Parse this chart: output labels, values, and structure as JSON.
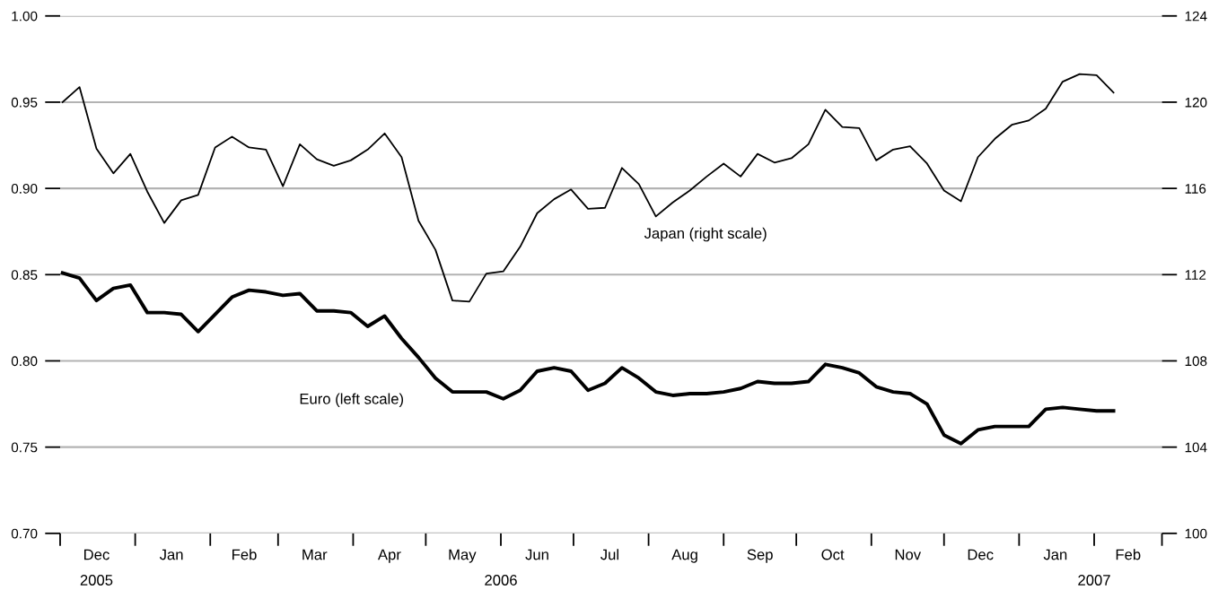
{
  "chart_data": {
    "type": "line",
    "x": [
      "2005-12-02",
      "2005-12-09",
      "2005-12-16",
      "2005-12-23",
      "2005-12-30",
      "2006-01-06",
      "2006-01-13",
      "2006-01-20",
      "2006-01-27",
      "2006-02-03",
      "2006-02-10",
      "2006-02-17",
      "2006-02-24",
      "2006-03-03",
      "2006-03-10",
      "2006-03-17",
      "2006-03-24",
      "2006-03-31",
      "2006-04-07",
      "2006-04-14",
      "2006-04-21",
      "2006-04-28",
      "2006-05-05",
      "2006-05-12",
      "2006-05-19",
      "2006-05-26",
      "2006-06-02",
      "2006-06-09",
      "2006-06-16",
      "2006-06-23",
      "2006-06-30",
      "2006-07-07",
      "2006-07-14",
      "2006-07-21",
      "2006-07-28",
      "2006-08-04",
      "2006-08-11",
      "2006-08-18",
      "2006-08-25",
      "2006-09-01",
      "2006-09-08",
      "2006-09-15",
      "2006-09-22",
      "2006-09-29",
      "2006-10-06",
      "2006-10-13",
      "2006-10-20",
      "2006-10-27",
      "2006-11-03",
      "2006-11-10",
      "2006-11-17",
      "2006-11-24",
      "2006-12-01",
      "2006-12-08",
      "2006-12-15",
      "2006-12-22",
      "2006-12-29",
      "2007-01-05",
      "2007-01-12",
      "2007-01-19",
      "2007-01-26",
      "2007-02-02",
      "2007-02-09"
    ],
    "series": [
      {
        "name": "Euro (left scale)",
        "color": "#000000",
        "axis": "y",
        "values": [
          0.851,
          0.848,
          0.835,
          0.842,
          0.844,
          0.828,
          0.828,
          0.827,
          0.817,
          0.827,
          0.837,
          0.841,
          0.84,
          0.838,
          0.839,
          0.829,
          0.829,
          0.828,
          0.82,
          0.826,
          0.813,
          0.802,
          0.79,
          0.782,
          0.782,
          0.782,
          0.778,
          0.783,
          0.794,
          0.796,
          0.794,
          0.783,
          0.787,
          0.796,
          0.79,
          0.782,
          0.78,
          0.781,
          0.781,
          0.782,
          0.784,
          0.788,
          0.787,
          0.787,
          0.788,
          0.798,
          0.796,
          0.793,
          0.785,
          0.782,
          0.781,
          0.775,
          0.757,
          0.752,
          0.76,
          0.762,
          0.762,
          0.762,
          0.772,
          0.773,
          0.772,
          0.771,
          0.771
        ]
      },
      {
        "name": "Japan (right scale)",
        "color": "#000000",
        "axis": "y2",
        "values": [
          120.0,
          120.7,
          117.85,
          116.7,
          117.6,
          115.85,
          114.4,
          115.45,
          115.7,
          117.9,
          118.4,
          117.9,
          117.8,
          116.1,
          118.05,
          117.35,
          117.05,
          117.3,
          117.8,
          118.55,
          117.45,
          114.5,
          113.15,
          110.8,
          110.75,
          112.05,
          112.15,
          113.3,
          114.85,
          115.5,
          115.95,
          115.05,
          115.1,
          116.95,
          116.2,
          114.7,
          115.35,
          115.9,
          116.55,
          117.15,
          116.55,
          117.6,
          117.2,
          117.4,
          118.05,
          119.65,
          118.85,
          118.8,
          117.3,
          117.8,
          117.95,
          117.15,
          115.9,
          115.4,
          117.45,
          118.3,
          118.95,
          119.15,
          119.7,
          120.95,
          121.3,
          121.25,
          120.45
        ]
      }
    ],
    "xlim": [
      "2005-12-01",
      "2007-03-01"
    ],
    "xticks": [
      {
        "value": "2005-12-01",
        "label": null
      },
      {
        "value": "2006-01-01",
        "label": null
      },
      {
        "value": "2006-02-01",
        "label": null
      },
      {
        "value": "2006-03-01",
        "label": null
      },
      {
        "value": "2006-04-01",
        "label": null
      },
      {
        "value": "2006-05-01",
        "label": null
      },
      {
        "value": "2006-06-01",
        "label": null
      },
      {
        "value": "2006-07-01",
        "label": null
      },
      {
        "value": "2006-08-01",
        "label": null
      },
      {
        "value": "2006-09-01",
        "label": null
      },
      {
        "value": "2006-10-01",
        "label": null
      },
      {
        "value": "2006-11-01",
        "label": null
      },
      {
        "value": "2006-12-01",
        "label": null
      },
      {
        "value": "2007-01-01",
        "label": null
      },
      {
        "value": "2007-02-01",
        "label": null
      },
      {
        "value": "2007-03-01",
        "label": null
      },
      {
        "value": "2005-12-16",
        "label": "Dec"
      },
      {
        "value": "2006-01-16",
        "label": "Jan"
      },
      {
        "value": "2006-02-15",
        "label": "Feb"
      },
      {
        "value": "2006-03-16",
        "label": "Mar"
      },
      {
        "value": "2006-04-16",
        "label": "Apr"
      },
      {
        "value": "2006-05-16",
        "label": "May"
      },
      {
        "value": "2006-06-16",
        "label": "Jun"
      },
      {
        "value": "2006-07-16",
        "label": "Jul"
      },
      {
        "value": "2006-08-16",
        "label": "Aug"
      },
      {
        "value": "2006-09-16",
        "label": "Sep"
      },
      {
        "value": "2006-10-16",
        "label": "Oct"
      },
      {
        "value": "2006-11-16",
        "label": "Nov"
      },
      {
        "value": "2006-12-16",
        "label": "Dec"
      },
      {
        "value": "2007-01-16",
        "label": "Jan"
      },
      {
        "value": "2007-02-15",
        "label": "Feb"
      }
    ],
    "x2lim": [
      "2005-12-01",
      "2007-03-01"
    ],
    "x2ticks": [
      {
        "value": "2005-12-16",
        "label": "2005"
      },
      {
        "value": "2006-06-01",
        "label": "2006"
      },
      {
        "value": "2007-02-01",
        "label": "2007"
      }
    ],
    "ylim": [
      0.7,
      1.0
    ],
    "yticks": [
      {
        "value": 0.7,
        "label": "0.70"
      },
      {
        "value": 0.75,
        "label": "0.75"
      },
      {
        "value": 0.8,
        "label": "0.80"
      },
      {
        "value": 0.85,
        "label": "0.85"
      },
      {
        "value": 0.9,
        "label": "0.90"
      },
      {
        "value": 0.95,
        "label": "0.95"
      },
      {
        "value": 1.0,
        "label": "1.00"
      }
    ],
    "y2lim": [
      100,
      124
    ],
    "y2ticks": [
      100,
      104,
      108,
      112,
      116,
      120,
      124
    ],
    "grid": "y",
    "legend": false,
    "marker": "none",
    "line_style": "solid"
  }
}
